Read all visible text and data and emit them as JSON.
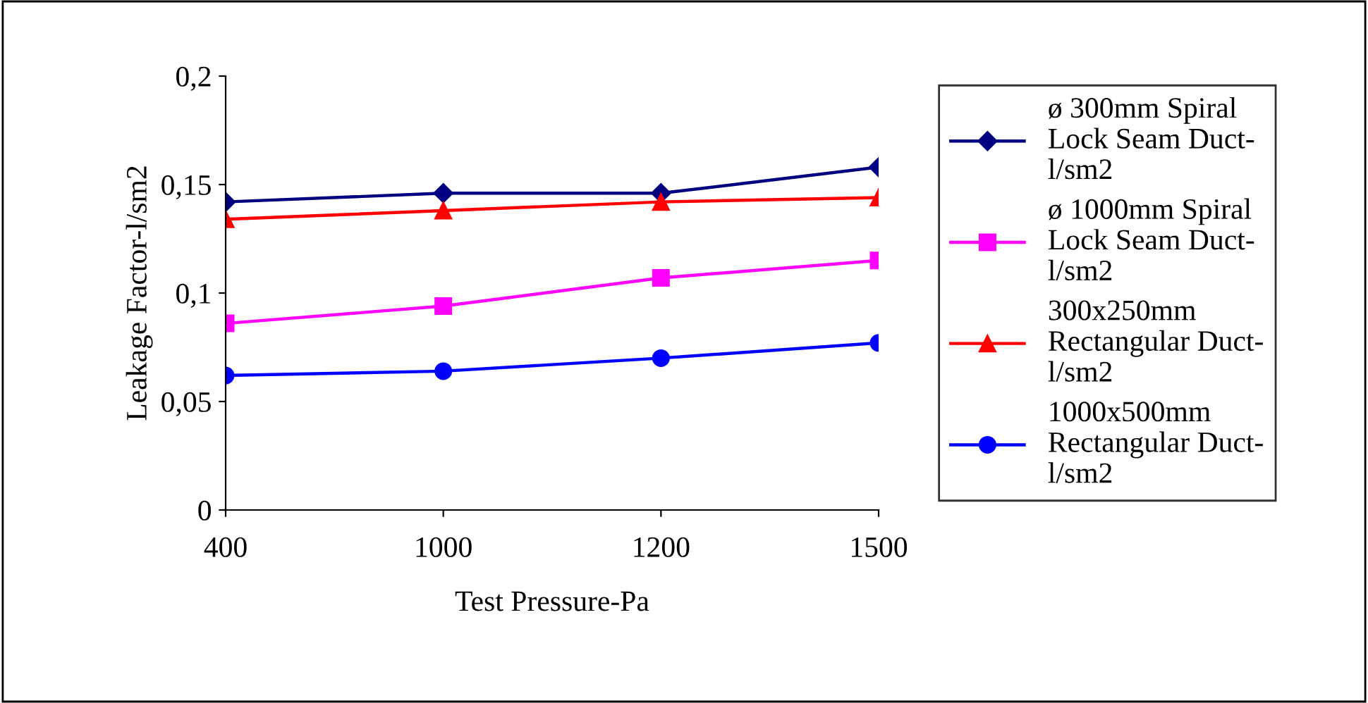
{
  "chart_data": {
    "type": "line",
    "xlabel": "Test Pressure-Pa",
    "ylabel": "Leakage Factor-l/sm2",
    "categories": [
      "400",
      "1000",
      "1200",
      "1500"
    ],
    "series": [
      {
        "name": "ø 300mm Spiral\nLock Seam Duct-\nl/sm2",
        "color": "#000080",
        "marker": "diamond",
        "values": [
          0.142,
          0.146,
          0.146,
          0.158
        ]
      },
      {
        "name": "ø 1000mm Spiral\nLock Seam Duct-\nl/sm2",
        "color": "#ff00ff",
        "marker": "square",
        "values": [
          0.086,
          0.094,
          0.107,
          0.115
        ]
      },
      {
        "name": "300x250mm\nRectangular Duct-\nl/sm2",
        "color": "#ff0000",
        "marker": "triangle",
        "values": [
          0.134,
          0.138,
          0.142,
          0.144
        ]
      },
      {
        "name": "1000x500mm\nRectangular Duct-\nl/sm2",
        "color": "#0000ff",
        "marker": "circle",
        "values": [
          0.062,
          0.064,
          0.07,
          0.077
        ]
      }
    ],
    "ylim": [
      0,
      0.2
    ],
    "yticks": [
      0,
      {
        "value": 0.05,
        "label": "0,05"
      },
      {
        "value": 0.1,
        "label": "0,1"
      },
      {
        "value": 0.15,
        "label": "0,15"
      },
      {
        "value": 0.2,
        "label": "0,2"
      }
    ],
    "grid": false,
    "legend": "right",
    "line_style": "solid"
  }
}
